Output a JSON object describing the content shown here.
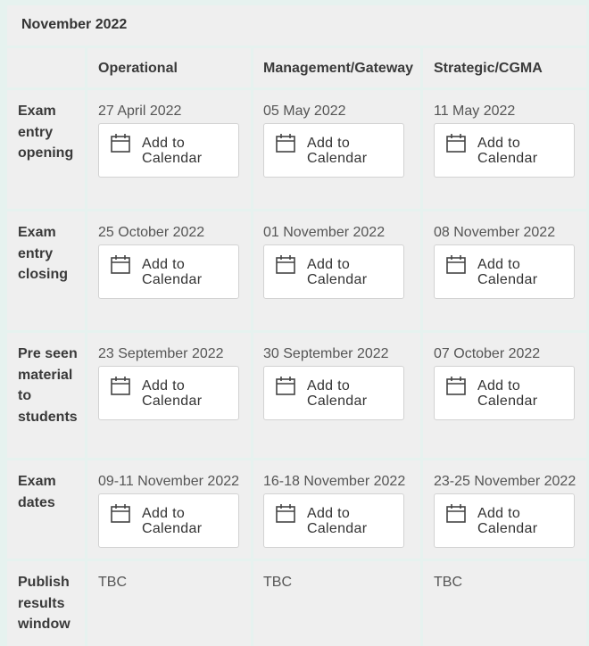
{
  "title": "November 2022",
  "columns": [
    "Operational",
    "Management/Gateway",
    "Strategic/CGMA"
  ],
  "add_to_calendar_label": "Add to Calendar",
  "rows": [
    {
      "label": "Exam entry opening",
      "dates": [
        "27 April 2022",
        "05 May 2022",
        "11 May 2022"
      ]
    },
    {
      "label": "Exam entry closing",
      "dates": [
        "25 October 2022",
        "01 November 2022",
        "08 November 2022"
      ]
    },
    {
      "label": "Pre seen material to students",
      "dates": [
        "23 September 2022",
        "30 September 2022",
        "07 October 2022"
      ]
    },
    {
      "label": "Exam dates",
      "dates": [
        "09-11 November 2022",
        "16-18 November 2022",
        "23-25 November 2022"
      ]
    },
    {
      "label": "Publish results window",
      "values": [
        "TBC",
        "TBC",
        "TBC"
      ]
    }
  ],
  "colors": {
    "cell_bg": "#efefef",
    "border_tint": "#e6f2ef",
    "button_bg": "#ffffff"
  },
  "icons": {
    "calendar": "calendar-icon"
  }
}
